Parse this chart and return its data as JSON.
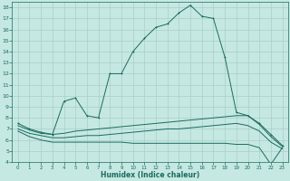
{
  "xlabel": "Humidex (Indice chaleur)",
  "ylabel": "",
  "bg_color": "#c6e8e2",
  "grid_color": "#a8cfc8",
  "line_color": "#1a6b60",
  "xlim": [
    -0.5,
    23.5
  ],
  "ylim": [
    4,
    18.5
  ],
  "xticks": [
    0,
    1,
    2,
    3,
    4,
    5,
    6,
    7,
    8,
    9,
    10,
    11,
    12,
    13,
    14,
    15,
    16,
    17,
    18,
    19,
    20,
    21,
    22,
    23
  ],
  "yticks": [
    4,
    5,
    6,
    7,
    8,
    9,
    10,
    11,
    12,
    13,
    14,
    15,
    16,
    17,
    18
  ],
  "main_x": [
    0,
    1,
    2,
    3,
    4,
    5,
    6,
    7,
    8,
    9,
    10,
    11,
    12,
    13,
    14,
    15,
    16,
    17,
    18,
    19,
    20,
    21,
    22,
    23
  ],
  "main_y": [
    7.5,
    7.0,
    6.7,
    6.5,
    9.5,
    9.8,
    8.2,
    8.0,
    12.0,
    12.0,
    14.0,
    15.2,
    16.2,
    16.5,
    17.5,
    18.2,
    17.2,
    17.0,
    13.5,
    8.5,
    8.2,
    7.5,
    6.5,
    5.5
  ],
  "flat1_x": [
    0,
    1,
    2,
    3,
    4,
    5,
    6,
    7,
    8,
    9,
    10,
    11,
    12,
    13,
    14,
    15,
    16,
    17,
    18,
    19,
    20,
    21,
    22,
    23
  ],
  "flat1_y": [
    7.3,
    6.9,
    6.6,
    6.5,
    6.6,
    6.8,
    6.9,
    7.0,
    7.1,
    7.2,
    7.3,
    7.4,
    7.5,
    7.6,
    7.7,
    7.8,
    7.9,
    8.0,
    8.1,
    8.2,
    8.2,
    7.4,
    6.3,
    5.4
  ],
  "flat2_x": [
    0,
    1,
    2,
    3,
    4,
    5,
    6,
    7,
    8,
    9,
    10,
    11,
    12,
    13,
    14,
    15,
    16,
    17,
    18,
    19,
    20,
    21,
    22,
    23
  ],
  "flat2_y": [
    7.0,
    6.6,
    6.4,
    6.2,
    6.2,
    6.3,
    6.4,
    6.4,
    6.5,
    6.6,
    6.7,
    6.8,
    6.9,
    7.0,
    7.0,
    7.1,
    7.2,
    7.3,
    7.4,
    7.5,
    7.3,
    6.8,
    5.8,
    5.2
  ],
  "flat3_x": [
    0,
    1,
    2,
    3,
    4,
    5,
    6,
    7,
    8,
    9,
    10,
    11,
    12,
    13,
    14,
    15,
    16,
    17,
    18,
    19,
    20,
    21,
    22,
    23
  ],
  "flat3_y": [
    6.8,
    6.3,
    6.0,
    5.8,
    5.8,
    5.8,
    5.8,
    5.8,
    5.8,
    5.8,
    5.7,
    5.7,
    5.7,
    5.7,
    5.7,
    5.7,
    5.7,
    5.7,
    5.7,
    5.6,
    5.6,
    5.3,
    3.8,
    5.3
  ]
}
